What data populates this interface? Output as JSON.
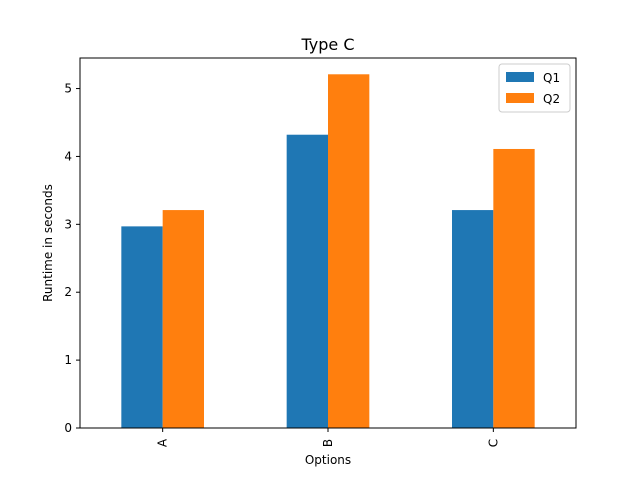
{
  "chart_data": {
    "type": "bar",
    "title": "Type C",
    "xlabel": "Options",
    "ylabel": "Runtime in seconds",
    "categories": [
      "A",
      "B",
      "C"
    ],
    "series": [
      {
        "name": "Q1",
        "color": "#1f77b4",
        "values": [
          2.97,
          4.32,
          3.21
        ]
      },
      {
        "name": "Q2",
        "color": "#ff7f0e",
        "values": [
          3.21,
          5.21,
          4.11
        ]
      }
    ],
    "ylim": [
      0,
      5.45
    ],
    "yticks": [
      0,
      1,
      2,
      3,
      4,
      5
    ],
    "grid": false,
    "legend_position": "top-right"
  }
}
